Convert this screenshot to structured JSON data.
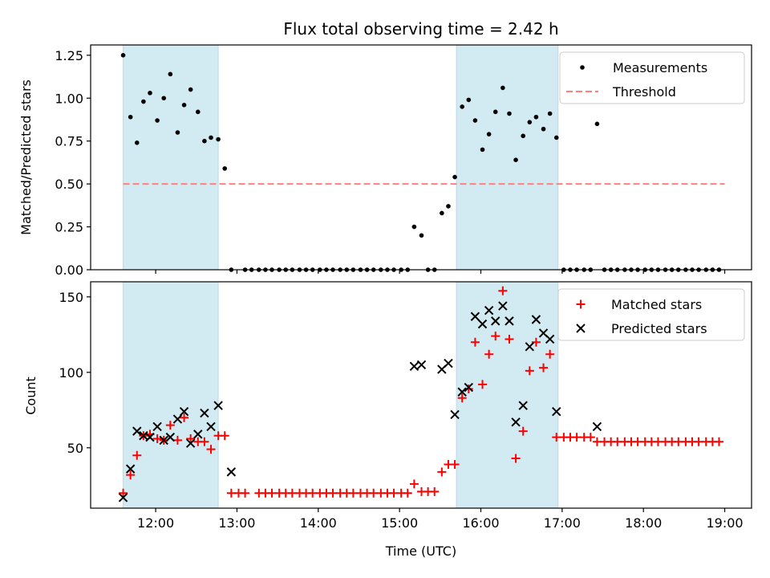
{
  "title": "Flux total observing time = 2.42 h",
  "colors": {
    "shade": "#add8e6",
    "measurement": "#000000",
    "threshold": "#ff8080",
    "matched": "#ff0000",
    "predicted": "#000000"
  },
  "chart_data": [
    {
      "type": "scatter",
      "panel": "top",
      "title": "Flux total observing time = 2.42 h",
      "xlabel": "",
      "ylabel": "Matched/Predicted stars",
      "xlim": [
        11.2,
        19.33
      ],
      "ylim": [
        0,
        1.31
      ],
      "xticks": [
        12,
        13,
        14,
        15,
        16,
        17,
        18,
        19
      ],
      "yticks": [
        0.0,
        0.25,
        0.5,
        0.75,
        1.0,
        1.25
      ],
      "ytick_labels": [
        "0.00",
        "0.25",
        "0.50",
        "0.75",
        "1.00",
        "1.25"
      ],
      "shaded_regions": [
        [
          11.6,
          12.77
        ],
        [
          15.7,
          16.95
        ]
      ],
      "threshold": {
        "name": "Threshold",
        "y": 0.5,
        "x_range": [
          11.6,
          19.0
        ]
      },
      "legend": {
        "position": "top-right",
        "entries": [
          "Measurements",
          "Threshold"
        ]
      },
      "series": [
        {
          "name": "Measurements",
          "x": [
            11.6,
            11.69,
            11.77,
            11.85,
            11.93,
            12.02,
            12.1,
            12.18,
            12.27,
            12.35,
            12.43,
            12.52,
            12.6,
            12.68,
            12.77,
            12.85,
            12.93,
            13.1,
            13.18,
            13.27,
            13.35,
            13.43,
            13.52,
            13.6,
            13.68,
            13.77,
            13.85,
            13.93,
            14.02,
            14.1,
            14.18,
            14.27,
            14.35,
            14.43,
            14.52,
            14.6,
            14.68,
            14.77,
            14.85,
            14.93,
            15.02,
            15.1,
            15.18,
            15.27,
            15.35,
            15.43,
            15.52,
            15.6,
            15.68,
            15.77,
            15.85,
            15.93,
            16.02,
            16.1,
            16.18,
            16.27,
            16.35,
            16.43,
            16.52,
            16.6,
            16.68,
            16.77,
            16.85,
            16.93,
            17.02,
            17.1,
            17.18,
            17.27,
            17.35,
            17.43,
            17.52,
            17.6,
            17.68,
            17.77,
            17.85,
            17.93,
            18.02,
            18.1,
            18.18,
            18.27,
            18.35,
            18.43,
            18.52,
            18.6,
            18.68,
            18.77,
            18.85,
            18.93
          ],
          "y": [
            1.25,
            0.89,
            0.74,
            0.98,
            1.03,
            0.87,
            1.0,
            1.14,
            0.8,
            0.96,
            1.05,
            0.92,
            0.75,
            0.77,
            0.76,
            0.59,
            0.0,
            0.0,
            0.0,
            0.0,
            0.0,
            0.0,
            0.0,
            0.0,
            0.0,
            0.0,
            0.0,
            0.0,
            0.0,
            0.0,
            0.0,
            0.0,
            0.0,
            0.0,
            0.0,
            0.0,
            0.0,
            0.0,
            0.0,
            0.0,
            0.0,
            0.0,
            0.25,
            0.2,
            0.0,
            0.0,
            0.33,
            0.37,
            0.54,
            0.95,
            0.99,
            0.87,
            0.7,
            0.79,
            0.92,
            1.06,
            0.91,
            0.64,
            0.78,
            0.86,
            0.89,
            0.82,
            0.91,
            0.77,
            0.0,
            0.0,
            0.0,
            0.0,
            0.0,
            0.85,
            0.0,
            0.0,
            0.0,
            0.0,
            0.0,
            0.0,
            0.0,
            0.0,
            0.0,
            0.0,
            0.0,
            0.0,
            0.0,
            0.0,
            0.0,
            0.0,
            0.0,
            0.0
          ]
        }
      ]
    },
    {
      "type": "scatter",
      "panel": "bottom",
      "title": "",
      "xlabel": "Time (UTC)",
      "ylabel": "Count",
      "xlim": [
        11.2,
        19.33
      ],
      "ylim": [
        10,
        160
      ],
      "xticks": [
        12,
        13,
        14,
        15,
        16,
        17,
        18,
        19
      ],
      "xtick_labels": [
        "12:00",
        "13:00",
        "14:00",
        "15:00",
        "16:00",
        "17:00",
        "18:00",
        "19:00"
      ],
      "yticks": [
        50,
        100,
        150
      ],
      "ytick_labels": [
        "50",
        "100",
        "150"
      ],
      "shaded_regions": [
        [
          11.6,
          12.77
        ],
        [
          15.7,
          16.95
        ]
      ],
      "legend": {
        "position": "top-right",
        "entries": [
          "Matched stars",
          "Predicted stars"
        ]
      },
      "series": [
        {
          "name": "Matched stars",
          "marker": "plus",
          "x": [
            11.6,
            11.69,
            11.77,
            11.85,
            11.93,
            12.02,
            12.1,
            12.18,
            12.27,
            12.35,
            12.43,
            12.52,
            12.6,
            12.68,
            12.77,
            12.85,
            12.93,
            13.02,
            13.1,
            13.27,
            13.35,
            13.43,
            13.52,
            13.6,
            13.68,
            13.77,
            13.85,
            13.93,
            14.02,
            14.1,
            14.18,
            14.27,
            14.35,
            14.43,
            14.52,
            14.6,
            14.68,
            14.77,
            14.85,
            14.93,
            15.02,
            15.1,
            15.18,
            15.27,
            15.35,
            15.43,
            15.52,
            15.6,
            15.68,
            15.77,
            15.85,
            15.93,
            16.02,
            16.1,
            16.18,
            16.27,
            16.35,
            16.43,
            16.52,
            16.6,
            16.68,
            16.77,
            16.85,
            16.93,
            17.02,
            17.1,
            17.18,
            17.27,
            17.35,
            17.43,
            17.52,
            17.6,
            17.68,
            17.77,
            17.85,
            17.93,
            18.02,
            18.1,
            18.18,
            18.27,
            18.35,
            18.43,
            18.52,
            18.6,
            18.68,
            18.77,
            18.85,
            18.93
          ],
          "y": [
            20,
            32,
            45,
            58,
            59,
            56,
            55,
            65,
            55,
            70,
            56,
            54,
            54,
            49,
            58,
            58,
            20,
            20,
            20,
            20,
            20,
            20,
            20,
            20,
            20,
            20,
            20,
            20,
            20,
            20,
            20,
            20,
            20,
            20,
            20,
            20,
            20,
            20,
            20,
            20,
            20,
            20,
            26,
            21,
            21,
            21,
            34,
            39,
            39,
            83,
            89,
            120,
            92,
            112,
            124,
            154,
            122,
            43,
            61,
            101,
            120,
            103,
            112,
            57,
            57,
            57,
            57,
            57,
            57,
            54,
            54,
            54,
            54,
            54,
            54,
            54,
            54,
            54,
            54,
            54,
            54,
            54,
            54,
            54,
            54,
            54,
            54,
            54
          ]
        },
        {
          "name": "Predicted stars",
          "marker": "x",
          "x": [
            11.6,
            11.69,
            11.77,
            11.85,
            11.93,
            12.02,
            12.1,
            12.18,
            12.27,
            12.35,
            12.43,
            12.52,
            12.6,
            12.68,
            12.77,
            12.93,
            15.18,
            15.27,
            15.52,
            15.6,
            15.68,
            15.77,
            15.85,
            15.93,
            16.02,
            16.1,
            16.18,
            16.27,
            16.35,
            16.43,
            16.52,
            16.6,
            16.68,
            16.77,
            16.85,
            16.93,
            17.43
          ],
          "y": [
            17,
            36,
            61,
            58,
            57,
            64,
            55,
            57,
            69,
            74,
            53,
            59,
            73,
            64,
            78,
            34,
            104,
            105,
            102,
            106,
            72,
            87,
            90,
            137,
            132,
            141,
            134,
            144,
            134,
            67,
            78,
            117,
            135,
            126,
            122,
            74,
            64
          ]
        }
      ]
    }
  ]
}
